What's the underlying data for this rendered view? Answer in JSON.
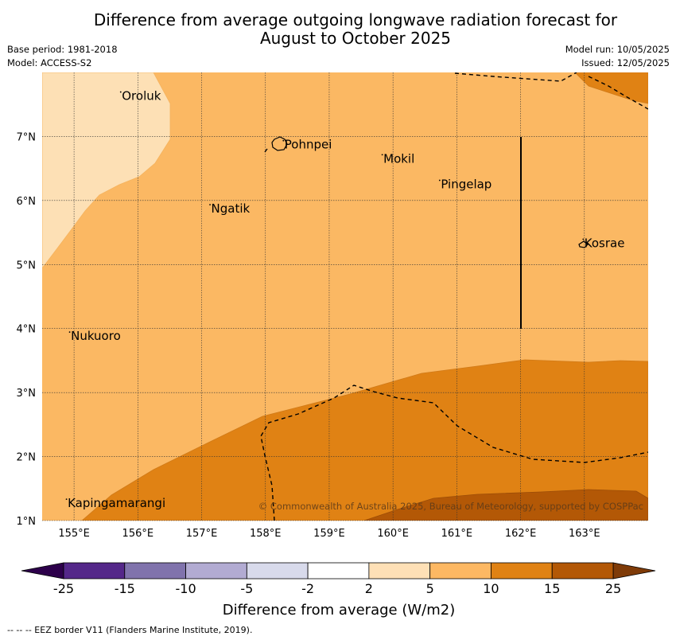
{
  "title_line1": "Difference from average outgoing longwave radiation forecast for",
  "title_line2": "August to October 2025",
  "base_period": "Base period: 1981-2018",
  "model": "Model: ACCESS-S2",
  "model_run": "Model run: 10/05/2025",
  "issued": "Issued: 12/05/2025",
  "map": {
    "lon_range": [
      154.5,
      164.0
    ],
    "lat_range": [
      1.0,
      8.0
    ],
    "lon_ticks": [
      "155°E",
      "156°E",
      "157°E",
      "158°E",
      "159°E",
      "160°E",
      "161°E",
      "162°E",
      "163°E"
    ],
    "lat_ticks": [
      "1°N",
      "2°N",
      "3°N",
      "4°N",
      "5°N",
      "6°N",
      "7°N"
    ],
    "places": [
      {
        "name": "Oroluk",
        "lon": 155.75,
        "lat": 7.62
      },
      {
        "name": "Pohnpei",
        "lon": 158.3,
        "lat": 6.86
      },
      {
        "name": "Mokil",
        "lon": 159.85,
        "lat": 6.64
      },
      {
        "name": "Pingelap",
        "lon": 160.75,
        "lat": 6.24
      },
      {
        "name": "Ngatik",
        "lon": 157.15,
        "lat": 5.86
      },
      {
        "name": "Kosrae",
        "lon": 163.0,
        "lat": 5.32
      },
      {
        "name": "Nukuoro",
        "lon": 154.95,
        "lat": 3.87
      },
      {
        "name": "Kapingamarangi",
        "lon": 154.9,
        "lat": 1.26
      }
    ],
    "copyright": "© Commonwealth of Australia 2025, Bureau of Meteorology, supported by COSPPac"
  },
  "colorbar": {
    "label": "Difference from average (W/m2)",
    "tick_labels": [
      "-25",
      "-15",
      "-10",
      "-5",
      "-2",
      "2",
      "5",
      "10",
      "15",
      "25"
    ],
    "colors": [
      "#542789",
      "#8073ac",
      "#b2abd2",
      "#d8daeb",
      "#ffffff",
      "#fee0b6",
      "#fdb863",
      "#e08214",
      "#b35806"
    ],
    "under_color": "#2d004b",
    "over_color": "#7f3b08"
  },
  "footer": "--  --  -- EEZ border V11 (Flanders Marine Institute, 2019)."
}
